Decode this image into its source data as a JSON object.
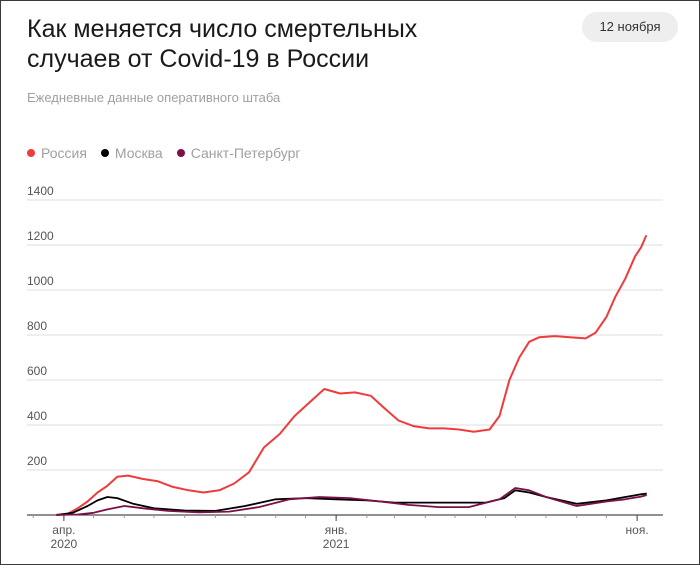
{
  "header": {
    "title": "Как меняется число смертельных случаев от Covid-19 в России",
    "date_badge": "12 ноября",
    "subtitle": "Ежедневные данные оперативного штаба"
  },
  "legend": [
    {
      "label": "Россия",
      "color": "#ee3c3c"
    },
    {
      "label": "Москва",
      "color": "#000000"
    },
    {
      "label": "Санкт-Петербург",
      "color": "#7b1146"
    }
  ],
  "chart_data": {
    "type": "line",
    "title": "Как меняется число смертельных случаев от Covid-19 в России",
    "subtitle": "Ежедневные данные оперативного штаба",
    "xlabel": "",
    "ylabel": "",
    "ylim": [
      0,
      1400
    ],
    "yticks": [
      200,
      400,
      600,
      800,
      1000,
      1200,
      1400
    ],
    "xticks": [
      {
        "date": "2020-04-01",
        "label": "апр.",
        "sublabel": "2020"
      },
      {
        "date": "2021-01-01",
        "label": "янв.",
        "sublabel": "2021"
      },
      {
        "date": "2021-11-01",
        "label": "ноя.",
        "sublabel": ""
      }
    ],
    "x_range": [
      "2020-03-20",
      "2021-11-12"
    ],
    "grid": true,
    "legend_position": "top-left",
    "series": [
      {
        "name": "Россия",
        "color": "#ee3c3c",
        "points": [
          [
            "2020-03-25",
            1
          ],
          [
            "2020-04-05",
            5
          ],
          [
            "2020-04-15",
            30
          ],
          [
            "2020-04-25",
            60
          ],
          [
            "2020-05-05",
            100
          ],
          [
            "2020-05-15",
            130
          ],
          [
            "2020-05-25",
            170
          ],
          [
            "2020-06-05",
            175
          ],
          [
            "2020-06-20",
            160
          ],
          [
            "2020-07-05",
            150
          ],
          [
            "2020-07-20",
            125
          ],
          [
            "2020-08-05",
            110
          ],
          [
            "2020-08-20",
            100
          ],
          [
            "2020-09-05",
            110
          ],
          [
            "2020-09-20",
            140
          ],
          [
            "2020-10-05",
            190
          ],
          [
            "2020-10-20",
            300
          ],
          [
            "2020-11-05",
            360
          ],
          [
            "2020-11-20",
            440
          ],
          [
            "2020-12-05",
            500
          ],
          [
            "2020-12-20",
            560
          ],
          [
            "2021-01-05",
            540
          ],
          [
            "2021-01-20",
            545
          ],
          [
            "2021-02-05",
            530
          ],
          [
            "2021-02-20",
            470
          ],
          [
            "2021-03-05",
            420
          ],
          [
            "2021-03-20",
            395
          ],
          [
            "2021-04-05",
            385
          ],
          [
            "2021-04-20",
            385
          ],
          [
            "2021-05-05",
            380
          ],
          [
            "2021-05-20",
            370
          ],
          [
            "2021-06-05",
            380
          ],
          [
            "2021-06-15",
            440
          ],
          [
            "2021-06-25",
            600
          ],
          [
            "2021-07-05",
            700
          ],
          [
            "2021-07-15",
            770
          ],
          [
            "2021-07-25",
            790
          ],
          [
            "2021-08-10",
            795
          ],
          [
            "2021-08-25",
            790
          ],
          [
            "2021-09-10",
            785
          ],
          [
            "2021-09-20",
            810
          ],
          [
            "2021-10-01",
            880
          ],
          [
            "2021-10-10",
            970
          ],
          [
            "2021-10-20",
            1050
          ],
          [
            "2021-10-30",
            1150
          ],
          [
            "2021-11-05",
            1190
          ],
          [
            "2021-11-10",
            1240
          ]
        ]
      },
      {
        "name": "Москва",
        "color": "#000000",
        "points": [
          [
            "2020-03-25",
            0
          ],
          [
            "2020-04-10",
            10
          ],
          [
            "2020-04-25",
            40
          ],
          [
            "2020-05-05",
            65
          ],
          [
            "2020-05-15",
            80
          ],
          [
            "2020-05-25",
            75
          ],
          [
            "2020-06-10",
            50
          ],
          [
            "2020-07-01",
            30
          ],
          [
            "2020-08-01",
            20
          ],
          [
            "2020-09-01",
            18
          ],
          [
            "2020-10-01",
            40
          ],
          [
            "2020-11-01",
            70
          ],
          [
            "2020-12-01",
            75
          ],
          [
            "2021-01-01",
            70
          ],
          [
            "2021-02-01",
            65
          ],
          [
            "2021-03-01",
            55
          ],
          [
            "2021-04-01",
            55
          ],
          [
            "2021-05-01",
            55
          ],
          [
            "2021-06-01",
            55
          ],
          [
            "2021-06-20",
            75
          ],
          [
            "2021-07-01",
            110
          ],
          [
            "2021-07-15",
            100
          ],
          [
            "2021-08-01",
            80
          ],
          [
            "2021-09-01",
            50
          ],
          [
            "2021-10-01",
            65
          ],
          [
            "2021-10-20",
            80
          ],
          [
            "2021-11-05",
            92
          ],
          [
            "2021-11-10",
            95
          ]
        ]
      },
      {
        "name": "Санкт-Петербург",
        "color": "#7b1146",
        "points": [
          [
            "2020-03-25",
            0
          ],
          [
            "2020-04-15",
            2
          ],
          [
            "2020-05-01",
            10
          ],
          [
            "2020-05-15",
            25
          ],
          [
            "2020-06-01",
            40
          ],
          [
            "2020-06-20",
            30
          ],
          [
            "2020-07-15",
            18
          ],
          [
            "2020-08-15",
            12
          ],
          [
            "2020-09-15",
            15
          ],
          [
            "2020-10-15",
            35
          ],
          [
            "2020-11-15",
            70
          ],
          [
            "2020-12-15",
            80
          ],
          [
            "2021-01-15",
            75
          ],
          [
            "2021-02-15",
            60
          ],
          [
            "2021-03-15",
            45
          ],
          [
            "2021-04-15",
            35
          ],
          [
            "2021-05-15",
            35
          ],
          [
            "2021-06-15",
            70
          ],
          [
            "2021-07-01",
            120
          ],
          [
            "2021-07-15",
            110
          ],
          [
            "2021-08-01",
            80
          ],
          [
            "2021-09-01",
            40
          ],
          [
            "2021-10-01",
            60
          ],
          [
            "2021-10-20",
            70
          ],
          [
            "2021-11-05",
            82
          ],
          [
            "2021-11-10",
            88
          ]
        ]
      }
    ]
  }
}
